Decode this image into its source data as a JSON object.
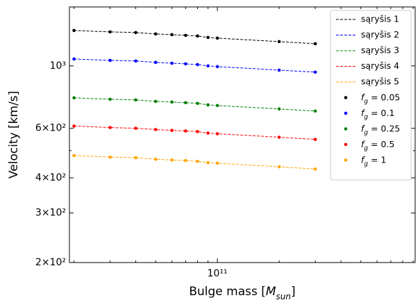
{
  "chart_data": {
    "type": "line",
    "xlog": true,
    "ylog": true,
    "ylabel": "Velocity [km/s]",
    "xlabel": [
      "Bulge mass [",
      "M",
      "sun",
      "]"
    ],
    "marker_label": [
      "f",
      "g",
      " = "
    ],
    "x": [
      20000000000,
      30000000000,
      40000000000,
      50000000000,
      60000000000,
      70000000000,
      80000000000,
      90000000000,
      100000000000,
      200000000000,
      300000000000
    ],
    "xlim": [
      19000000000,
      920000000000
    ],
    "xticks": [
      {
        "value": 100000000000,
        "label": "10¹¹"
      }
    ],
    "xminorticks": [
      20000000000,
      30000000000,
      40000000000,
      50000000000,
      60000000000,
      70000000000,
      80000000000,
      90000000000,
      200000000000,
      300000000000,
      400000000000,
      500000000000,
      600000000000,
      700000000000,
      800000000000,
      900000000000
    ],
    "ylim": [
      200,
      1620
    ],
    "yticks": [
      {
        "value": 200,
        "label": "2×10²"
      },
      {
        "value": 300,
        "label": "3×10²"
      },
      {
        "value": 400,
        "label": "4×10²"
      },
      {
        "value": 600,
        "label": "6×10²"
      },
      {
        "value": 1000,
        "label": "10³"
      }
    ],
    "yminorticks": [
      500
    ],
    "legend": "upper right",
    "series": [
      {
        "name": "sąryšis 1",
        "fg": 0.05,
        "color": "#000000",
        "values": [
          1336,
          1321,
          1314,
          1299,
          1291,
          1284,
          1277,
          1262,
          1255,
          1220,
          1199
        ]
      },
      {
        "name": "sąryšis 2",
        "fg": 0.1,
        "color": "#0000ff",
        "values": [
          1058,
          1046,
          1041,
          1029,
          1022,
          1017,
          1011,
          1000,
          994,
          966,
          950
        ]
      },
      {
        "name": "sąryšis 3",
        "fg": 0.25,
        "color": "#008000",
        "values": [
          770,
          761,
          757,
          748,
          744,
          740,
          736,
          727,
          723,
          703,
          691
        ]
      },
      {
        "name": "sąryšis 4",
        "fg": 0.5,
        "color": "#ff0000",
        "values": [
          611,
          604,
          600,
          594,
          590,
          587,
          584,
          577,
          574,
          558,
          548
        ]
      },
      {
        "name": "sąryšis 5",
        "fg": 1,
        "color": "#ffa500",
        "values": [
          480,
          474,
          472,
          466,
          463,
          461,
          458,
          453,
          451,
          438,
          430
        ]
      }
    ]
  }
}
